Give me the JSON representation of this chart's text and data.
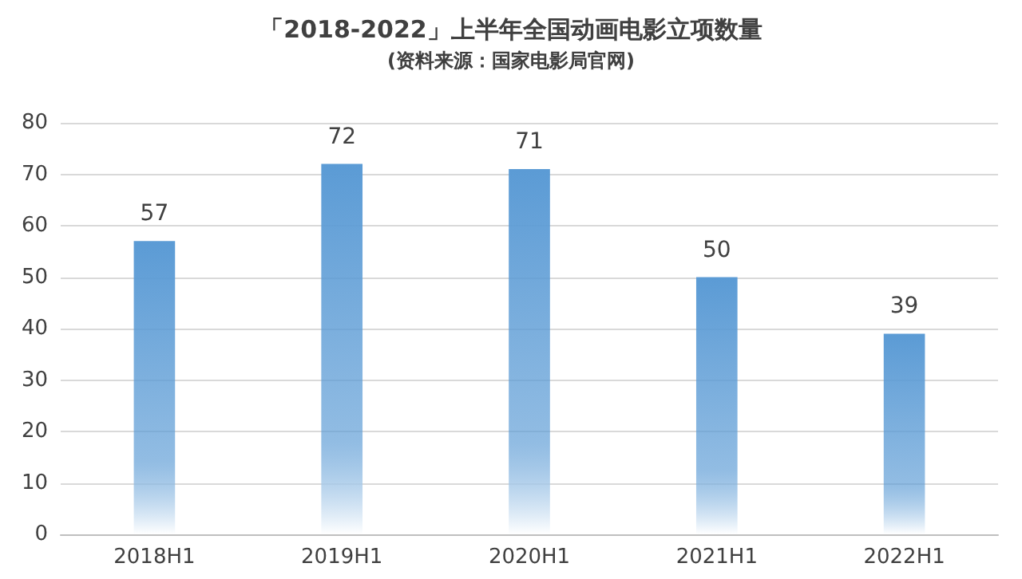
{
  "chart_data": {
    "type": "bar",
    "title": "「2018-2022」上半年全国动画电影立项数量",
    "subtitle": "(资料来源：国家电影局官网)",
    "categories": [
      "2018H1",
      "2019H1",
      "2020H1",
      "2021H1",
      "2022H1"
    ],
    "values": [
      57,
      72,
      71,
      50,
      39
    ],
    "color": "#5b9bd5",
    "ylim": [
      0,
      80
    ],
    "yticks": [
      0,
      10,
      20,
      30,
      40,
      50,
      60,
      70,
      80
    ],
    "grid": "y",
    "data_labels": true
  }
}
